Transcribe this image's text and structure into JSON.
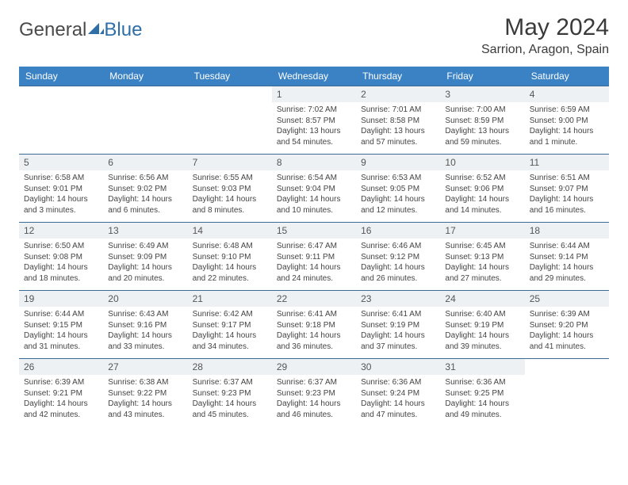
{
  "logo": {
    "part1": "General",
    "part2": "Blue"
  },
  "title": "May 2024",
  "subtitle": "Sarrion, Aragon, Spain",
  "colors": {
    "header_bg": "#3b82c4",
    "header_text": "#ffffff",
    "daynum_bg": "#eef1f4",
    "row_border": "#3b6a94",
    "logo_gray": "#4a4a4a",
    "logo_blue": "#2f6fa8"
  },
  "weekdays": [
    "Sunday",
    "Monday",
    "Tuesday",
    "Wednesday",
    "Thursday",
    "Friday",
    "Saturday"
  ],
  "weeks": [
    [
      {
        "empty": true
      },
      {
        "empty": true
      },
      {
        "empty": true
      },
      {
        "day": "1",
        "sunrise": "Sunrise: 7:02 AM",
        "sunset": "Sunset: 8:57 PM",
        "daylight1": "Daylight: 13 hours",
        "daylight2": "and 54 minutes."
      },
      {
        "day": "2",
        "sunrise": "Sunrise: 7:01 AM",
        "sunset": "Sunset: 8:58 PM",
        "daylight1": "Daylight: 13 hours",
        "daylight2": "and 57 minutes."
      },
      {
        "day": "3",
        "sunrise": "Sunrise: 7:00 AM",
        "sunset": "Sunset: 8:59 PM",
        "daylight1": "Daylight: 13 hours",
        "daylight2": "and 59 minutes."
      },
      {
        "day": "4",
        "sunrise": "Sunrise: 6:59 AM",
        "sunset": "Sunset: 9:00 PM",
        "daylight1": "Daylight: 14 hours",
        "daylight2": "and 1 minute."
      }
    ],
    [
      {
        "day": "5",
        "sunrise": "Sunrise: 6:58 AM",
        "sunset": "Sunset: 9:01 PM",
        "daylight1": "Daylight: 14 hours",
        "daylight2": "and 3 minutes."
      },
      {
        "day": "6",
        "sunrise": "Sunrise: 6:56 AM",
        "sunset": "Sunset: 9:02 PM",
        "daylight1": "Daylight: 14 hours",
        "daylight2": "and 6 minutes."
      },
      {
        "day": "7",
        "sunrise": "Sunrise: 6:55 AM",
        "sunset": "Sunset: 9:03 PM",
        "daylight1": "Daylight: 14 hours",
        "daylight2": "and 8 minutes."
      },
      {
        "day": "8",
        "sunrise": "Sunrise: 6:54 AM",
        "sunset": "Sunset: 9:04 PM",
        "daylight1": "Daylight: 14 hours",
        "daylight2": "and 10 minutes."
      },
      {
        "day": "9",
        "sunrise": "Sunrise: 6:53 AM",
        "sunset": "Sunset: 9:05 PM",
        "daylight1": "Daylight: 14 hours",
        "daylight2": "and 12 minutes."
      },
      {
        "day": "10",
        "sunrise": "Sunrise: 6:52 AM",
        "sunset": "Sunset: 9:06 PM",
        "daylight1": "Daylight: 14 hours",
        "daylight2": "and 14 minutes."
      },
      {
        "day": "11",
        "sunrise": "Sunrise: 6:51 AM",
        "sunset": "Sunset: 9:07 PM",
        "daylight1": "Daylight: 14 hours",
        "daylight2": "and 16 minutes."
      }
    ],
    [
      {
        "day": "12",
        "sunrise": "Sunrise: 6:50 AM",
        "sunset": "Sunset: 9:08 PM",
        "daylight1": "Daylight: 14 hours",
        "daylight2": "and 18 minutes."
      },
      {
        "day": "13",
        "sunrise": "Sunrise: 6:49 AM",
        "sunset": "Sunset: 9:09 PM",
        "daylight1": "Daylight: 14 hours",
        "daylight2": "and 20 minutes."
      },
      {
        "day": "14",
        "sunrise": "Sunrise: 6:48 AM",
        "sunset": "Sunset: 9:10 PM",
        "daylight1": "Daylight: 14 hours",
        "daylight2": "and 22 minutes."
      },
      {
        "day": "15",
        "sunrise": "Sunrise: 6:47 AM",
        "sunset": "Sunset: 9:11 PM",
        "daylight1": "Daylight: 14 hours",
        "daylight2": "and 24 minutes."
      },
      {
        "day": "16",
        "sunrise": "Sunrise: 6:46 AM",
        "sunset": "Sunset: 9:12 PM",
        "daylight1": "Daylight: 14 hours",
        "daylight2": "and 26 minutes."
      },
      {
        "day": "17",
        "sunrise": "Sunrise: 6:45 AM",
        "sunset": "Sunset: 9:13 PM",
        "daylight1": "Daylight: 14 hours",
        "daylight2": "and 27 minutes."
      },
      {
        "day": "18",
        "sunrise": "Sunrise: 6:44 AM",
        "sunset": "Sunset: 9:14 PM",
        "daylight1": "Daylight: 14 hours",
        "daylight2": "and 29 minutes."
      }
    ],
    [
      {
        "day": "19",
        "sunrise": "Sunrise: 6:44 AM",
        "sunset": "Sunset: 9:15 PM",
        "daylight1": "Daylight: 14 hours",
        "daylight2": "and 31 minutes."
      },
      {
        "day": "20",
        "sunrise": "Sunrise: 6:43 AM",
        "sunset": "Sunset: 9:16 PM",
        "daylight1": "Daylight: 14 hours",
        "daylight2": "and 33 minutes."
      },
      {
        "day": "21",
        "sunrise": "Sunrise: 6:42 AM",
        "sunset": "Sunset: 9:17 PM",
        "daylight1": "Daylight: 14 hours",
        "daylight2": "and 34 minutes."
      },
      {
        "day": "22",
        "sunrise": "Sunrise: 6:41 AM",
        "sunset": "Sunset: 9:18 PM",
        "daylight1": "Daylight: 14 hours",
        "daylight2": "and 36 minutes."
      },
      {
        "day": "23",
        "sunrise": "Sunrise: 6:41 AM",
        "sunset": "Sunset: 9:19 PM",
        "daylight1": "Daylight: 14 hours",
        "daylight2": "and 37 minutes."
      },
      {
        "day": "24",
        "sunrise": "Sunrise: 6:40 AM",
        "sunset": "Sunset: 9:19 PM",
        "daylight1": "Daylight: 14 hours",
        "daylight2": "and 39 minutes."
      },
      {
        "day": "25",
        "sunrise": "Sunrise: 6:39 AM",
        "sunset": "Sunset: 9:20 PM",
        "daylight1": "Daylight: 14 hours",
        "daylight2": "and 41 minutes."
      }
    ],
    [
      {
        "day": "26",
        "sunrise": "Sunrise: 6:39 AM",
        "sunset": "Sunset: 9:21 PM",
        "daylight1": "Daylight: 14 hours",
        "daylight2": "and 42 minutes."
      },
      {
        "day": "27",
        "sunrise": "Sunrise: 6:38 AM",
        "sunset": "Sunset: 9:22 PM",
        "daylight1": "Daylight: 14 hours",
        "daylight2": "and 43 minutes."
      },
      {
        "day": "28",
        "sunrise": "Sunrise: 6:37 AM",
        "sunset": "Sunset: 9:23 PM",
        "daylight1": "Daylight: 14 hours",
        "daylight2": "and 45 minutes."
      },
      {
        "day": "29",
        "sunrise": "Sunrise: 6:37 AM",
        "sunset": "Sunset: 9:23 PM",
        "daylight1": "Daylight: 14 hours",
        "daylight2": "and 46 minutes."
      },
      {
        "day": "30",
        "sunrise": "Sunrise: 6:36 AM",
        "sunset": "Sunset: 9:24 PM",
        "daylight1": "Daylight: 14 hours",
        "daylight2": "and 47 minutes."
      },
      {
        "day": "31",
        "sunrise": "Sunrise: 6:36 AM",
        "sunset": "Sunset: 9:25 PM",
        "daylight1": "Daylight: 14 hours",
        "daylight2": "and 49 minutes."
      },
      {
        "empty": true
      }
    ]
  ]
}
